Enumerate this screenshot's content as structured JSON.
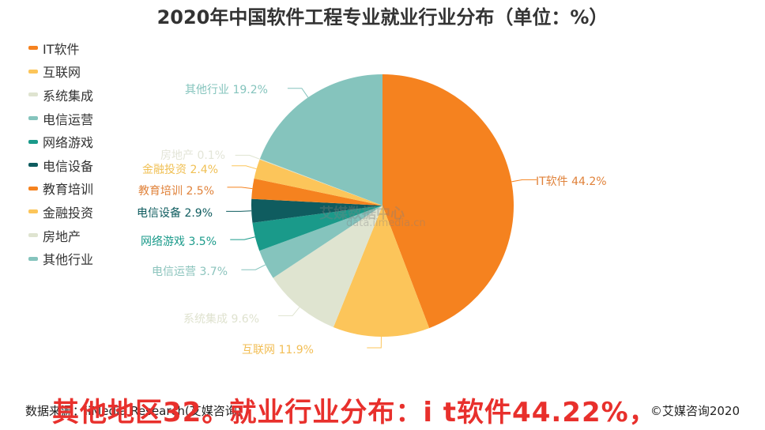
{
  "title": "2020年中国软件工程专业就业行业分布（单位：%）",
  "legend": [
    {
      "label": "IT软件",
      "color": "#f5821f"
    },
    {
      "label": "互联网",
      "color": "#fcc55a"
    },
    {
      "label": "系统集成",
      "color": "#dfe4d0"
    },
    {
      "label": "电信运营",
      "color": "#85c4bd"
    },
    {
      "label": "网络游戏",
      "color": "#1a9a8a"
    },
    {
      "label": "电信设备",
      "color": "#0f5c5f"
    },
    {
      "label": "教育培训",
      "color": "#f5821f"
    },
    {
      "label": "金融投资",
      "color": "#fcc55a"
    },
    {
      "label": "房地产",
      "color": "#dfe4d0"
    },
    {
      "label": "其他行业",
      "color": "#85c4bd"
    }
  ],
  "labels": {
    "it": "IT软件 44.2%",
    "internet": "互联网 11.9%",
    "sysint": "系统集成 9.6%",
    "telecom_op": "电信运营 3.7%",
    "gaming": "网络游戏 3.5%",
    "telecom_eq": "电信设备 2.9%",
    "edu": "教育培训 2.5%",
    "finance": "金融投资 2.4%",
    "realestate": "房地产 0.1%",
    "other": "其他行业 19.2%"
  },
  "watermark": {
    "line1": "艾媒数据中心",
    "line2": "data.iimedia.cn"
  },
  "footer": {
    "source": "数据来源：iiMedia Research(艾媒咨询)",
    "copyright": "©艾媒咨询2020"
  },
  "overlay_caption": "其他地区32。就业行业分布：i t软件44.22%，",
  "chart_data": {
    "type": "pie",
    "title": "2020年中国软件工程专业就业行业分布（单位：%）",
    "categories": [
      "IT软件",
      "互联网",
      "系统集成",
      "电信运营",
      "网络游戏",
      "电信设备",
      "教育培训",
      "金融投资",
      "房地产",
      "其他行业"
    ],
    "values": [
      44.2,
      11.9,
      9.6,
      3.7,
      3.5,
      2.9,
      2.5,
      2.4,
      0.1,
      19.2
    ],
    "colors": [
      "#f5821f",
      "#fcc55a",
      "#dfe4d0",
      "#85c4bd",
      "#1a9a8a",
      "#0f5c5f",
      "#f5821f",
      "#fcc55a",
      "#dfe4d0",
      "#85c4bd"
    ],
    "legend_position": "left",
    "unit": "%"
  }
}
